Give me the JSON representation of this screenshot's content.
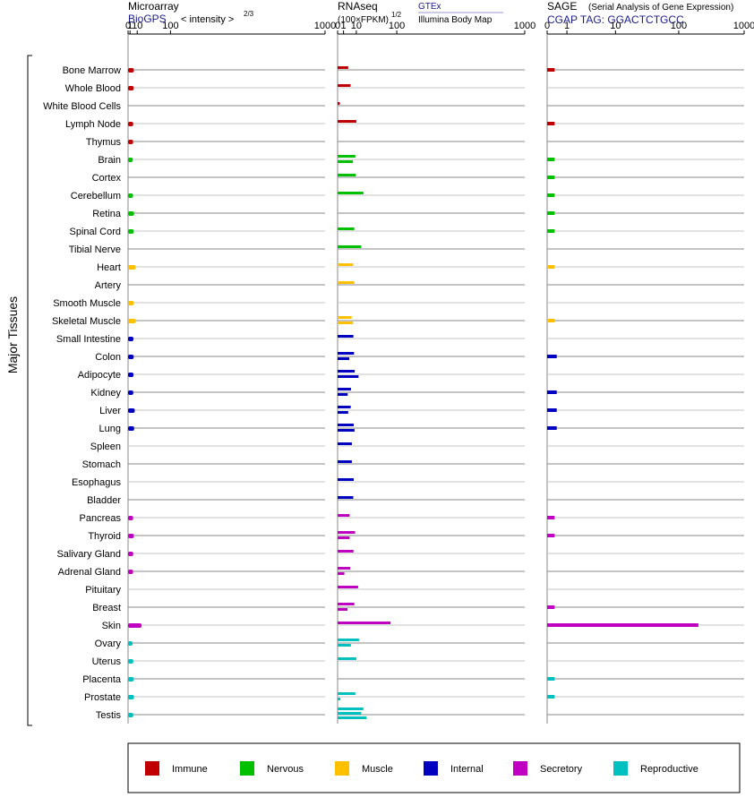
{
  "headers": {
    "microarray": {
      "title": "Microarray",
      "source": "BioGPS",
      "unit": "< intensity >",
      "unit_exp": "2/3"
    },
    "rnaseq": {
      "title": "RNAseq",
      "unit": "(100×FPKM)",
      "unit_exp": "1/2",
      "source1": "GTEx",
      "source2": "Illumina Body Map"
    },
    "sage": {
      "title": "SAGE",
      "subtitle": "(Serial Analysis of Gene Expression)",
      "tag": "CGAP TAG: GGACTCTGCC"
    }
  },
  "y_axis_label": "Major Tissues",
  "legend": [
    {
      "name": "Immune",
      "color": "#c00000"
    },
    {
      "name": "Nervous",
      "color": "#00c000"
    },
    {
      "name": "Muscle",
      "color": "#ffc000"
    },
    {
      "name": "Internal",
      "color": "#0000c0"
    },
    {
      "name": "Secretory",
      "color": "#c000c0"
    },
    {
      "name": "Reproductive",
      "color": "#00c0c0"
    }
  ],
  "chart_data": {
    "type": "bar",
    "x_ticks": [
      "0",
      "1",
      "10",
      "100",
      "1000"
    ],
    "x_tick_values": [
      0,
      1,
      10,
      100,
      1000
    ],
    "categories": [
      "Bone Marrow",
      "Whole Blood",
      "White Blood Cells",
      "Lymph Node",
      "Thymus",
      "Brain",
      "Cortex",
      "Cerebellum",
      "Retina",
      "Spinal Cord",
      "Tibial Nerve",
      "Heart",
      "Artery",
      "Smooth Muscle",
      "Skeletal Muscle",
      "Small Intestine",
      "Colon",
      "Adipocyte",
      "Kidney",
      "Liver",
      "Lung",
      "Spleen",
      "Stomach",
      "Esophagus",
      "Bladder",
      "Pancreas",
      "Thyroid",
      "Salivary Gland",
      "Adrenal Gland",
      "Pituitary",
      "Breast",
      "Skin",
      "Ovary",
      "Uterus",
      "Placenta",
      "Prostate",
      "Testis"
    ],
    "groups": [
      "Immune",
      "Immune",
      "Immune",
      "Immune",
      "Immune",
      "Nervous",
      "Nervous",
      "Nervous",
      "Nervous",
      "Nervous",
      "Nervous",
      "Muscle",
      "Muscle",
      "Muscle",
      "Muscle",
      "Internal",
      "Internal",
      "Internal",
      "Internal",
      "Internal",
      "Internal",
      "Internal",
      "Internal",
      "Internal",
      "Internal",
      "Secretory",
      "Secretory",
      "Secretory",
      "Secretory",
      "Secretory",
      "Secretory",
      "Secretory",
      "Reproductive",
      "Reproductive",
      "Reproductive",
      "Reproductive",
      "Reproductive"
    ],
    "series": [
      {
        "name": "Microarray",
        "values": [
          5,
          4.8,
          null,
          4.2,
          4.1,
          3.7,
          null,
          4,
          5.3,
          4.8,
          null,
          7.5,
          null,
          4.9,
          7.5,
          4.5,
          4.8,
          4.6,
          4.3,
          6.3,
          5.5,
          null,
          null,
          null,
          null,
          4.1,
          5,
          4.2,
          4,
          null,
          null,
          18,
          3.4,
          4.3,
          4.8,
          5.2,
          4.3
        ]
      },
      {
        "name": "GTEx",
        "values": [
          null,
          null,
          null,
          null,
          null,
          9,
          9.5,
          19,
          null,
          null,
          16,
          null,
          null,
          null,
          5.6,
          null,
          null,
          null,
          null,
          null,
          null,
          null,
          null,
          null,
          null,
          null,
          null,
          null,
          null,
          null,
          null,
          null,
          null,
          null,
          null,
          null,
          19
        ]
      },
      {
        "name": "Illumina Body Map",
        "values": [
          3.2,
          4.8,
          0.15,
          10,
          null,
          6.7,
          null,
          null,
          null,
          8,
          null,
          null,
          null,
          null,
          null,
          7.1,
          7.7,
          8.4,
          5.1,
          4.9,
          7.4,
          5.8,
          5.8,
          7.4,
          7,
          4.1,
          8.7,
          7.2,
          4.5,
          12,
          8,
          80,
          13,
          10,
          null,
          9,
          16
        ]
      },
      {
        "name": "Illumina Body Map 2",
        "values": [
          null,
          null,
          null,
          null,
          null,
          null,
          null,
          null,
          null,
          null,
          null,
          6.9,
          8,
          null,
          6.8,
          null,
          3.9,
          12.5,
          2.9,
          3.2,
          8.2,
          null,
          null,
          null,
          null,
          null,
          4.1,
          null,
          1.3,
          null,
          2.8,
          null,
          5,
          null,
          null,
          0.2,
          24
        ]
      },
      {
        "name": "SAGE",
        "values": [
          0.3,
          null,
          null,
          0.3,
          null,
          0.3,
          0.3,
          0.3,
          0.3,
          0.3,
          null,
          0.3,
          null,
          null,
          0.3,
          null,
          0.4,
          null,
          0.4,
          0.4,
          0.4,
          null,
          null,
          null,
          null,
          0.3,
          0.3,
          null,
          null,
          null,
          0.3,
          200,
          null,
          null,
          0.3,
          0.3,
          null
        ]
      }
    ]
  }
}
